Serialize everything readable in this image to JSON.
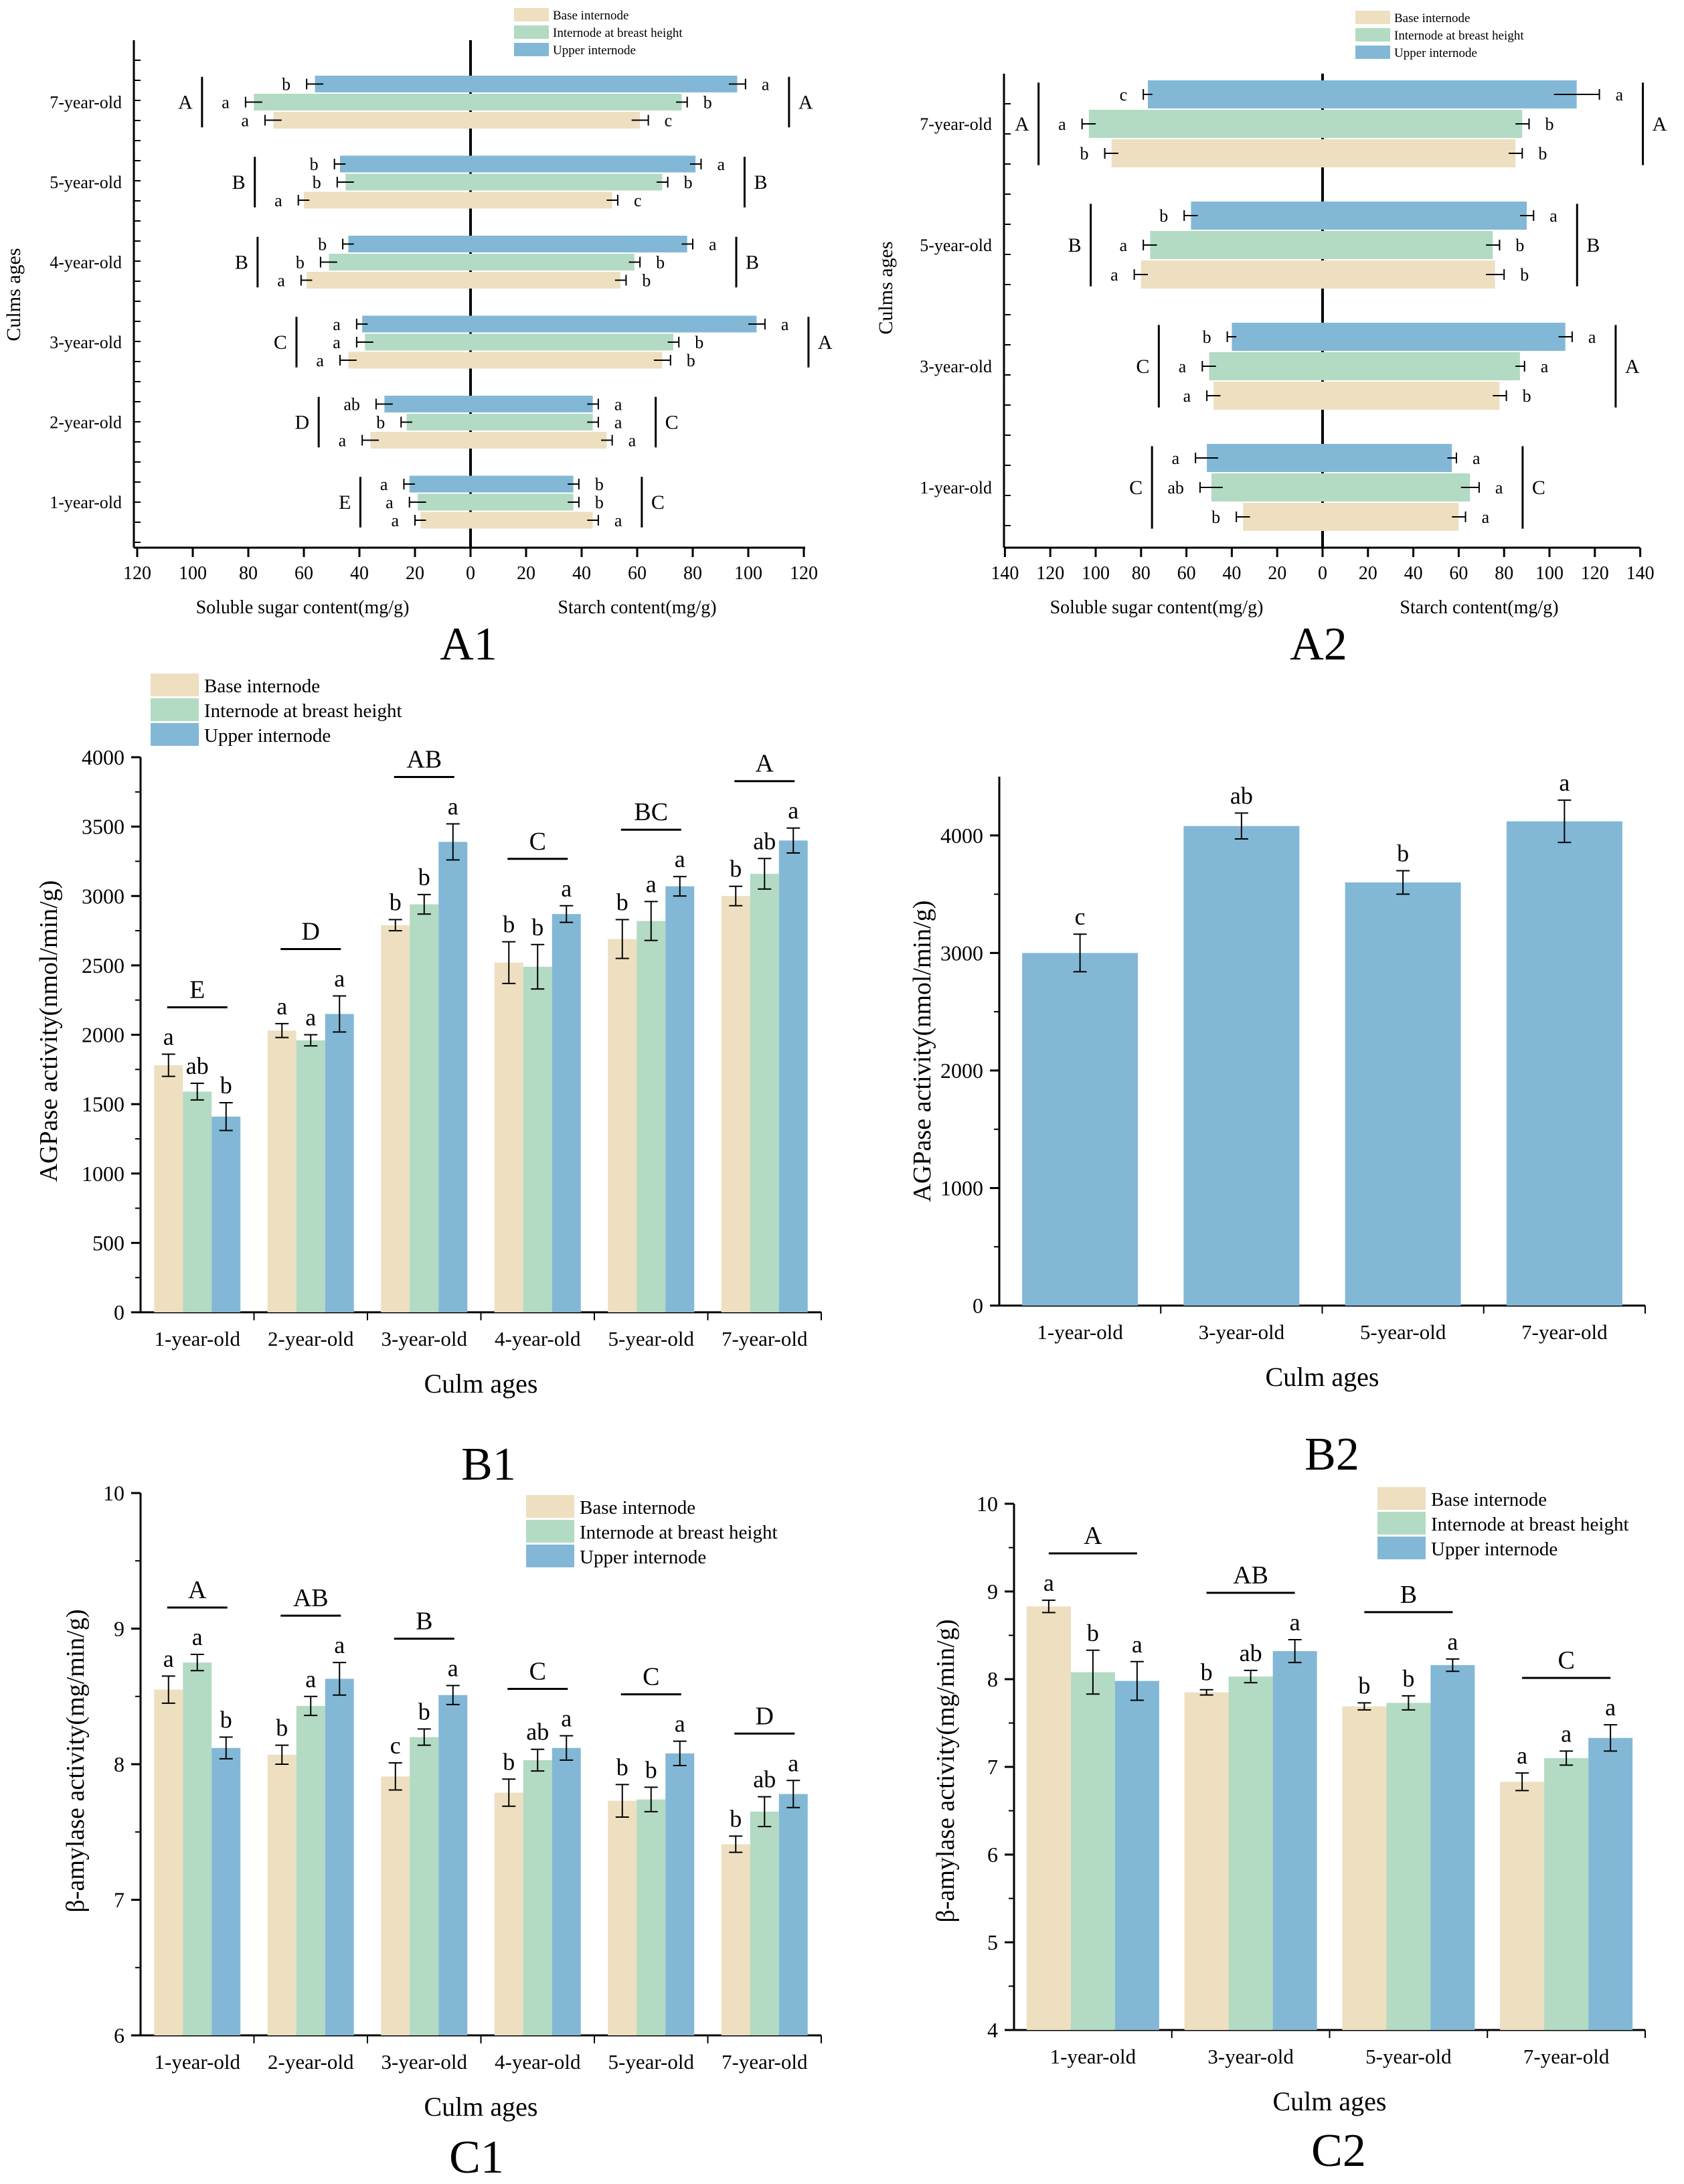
{
  "colors": {
    "base": "#EDDFC0",
    "breast": "#B3DAC2",
    "upper": "#82B8D6"
  },
  "panels": {
    "A1": {
      "label": "A1",
      "legend": [
        "Base internode",
        "Internode at breast height",
        "Upper internode"
      ]
    },
    "A2": {
      "label": "A2",
      "legend": [
        "Base internode",
        "Internode at breast height",
        "Upper internode"
      ]
    },
    "B1": {
      "label": "B1"
    },
    "B2": {
      "label": "B2"
    },
    "C1": {
      "label": "C1"
    },
    "C2": {
      "label": "C2"
    }
  },
  "chart_data": [
    {
      "id": "A1",
      "type": "bar",
      "orientation": "horizontal-butterfly",
      "ylabel": "Culms ages",
      "xlabel_left": "Soluble sugar content(mg/g)",
      "xlabel_right": "Starch content(mg/g)",
      "xlim": [
        0,
        120
      ],
      "xticks": [
        0,
        20,
        40,
        60,
        80,
        100,
        120
      ],
      "categories": [
        "1-year-old",
        "2-year-old",
        "3-year-old",
        "4-year-old",
        "5-year-old",
        "7-year-old"
      ],
      "series": [
        {
          "name": "Base internode",
          "sugar": [
            18,
            36,
            44,
            59,
            60,
            71
          ],
          "sugar_err": [
            2,
            3,
            3,
            2,
            2,
            3
          ],
          "sugar_letters": [
            "a",
            "a",
            "a",
            "a",
            "a",
            "a"
          ],
          "starch": [
            44,
            49,
            69,
            54,
            51,
            61
          ],
          "starch_err": [
            2,
            2,
            3,
            2,
            2,
            3
          ],
          "starch_letters": [
            "a",
            "a",
            "b",
            "b",
            "c",
            "c"
          ]
        },
        {
          "name": "Internode at breast height",
          "sugar": [
            19,
            23,
            38,
            51,
            45,
            78
          ],
          "sugar_err": [
            3,
            2,
            3,
            3,
            3,
            3
          ],
          "sugar_letters": [
            "a",
            "b",
            "a",
            "b",
            "b",
            "a"
          ],
          "starch": [
            37,
            44,
            73,
            59,
            69,
            76
          ],
          "starch_err": [
            2,
            2,
            2,
            2,
            2,
            2
          ],
          "starch_letters": [
            "b",
            "a",
            "b",
            "b",
            "b",
            "b"
          ]
        },
        {
          "name": "Upper internode",
          "sugar": [
            22,
            31,
            39,
            44,
            47,
            56
          ],
          "sugar_err": [
            2,
            3,
            2,
            2,
            2,
            3
          ],
          "sugar_letters": [
            "a",
            "ab",
            "a",
            "b",
            "b",
            "b"
          ],
          "starch": [
            37,
            44,
            103,
            78,
            81,
            96
          ],
          "starch_err": [
            2,
            2,
            3,
            2,
            2,
            3
          ],
          "starch_letters": [
            "b",
            "a",
            "a",
            "a",
            "a",
            "a"
          ]
        }
      ],
      "group_letters_sugar": [
        "E",
        "D",
        "C",
        "B",
        "B",
        "A"
      ],
      "group_letters_starch": [
        "C",
        "C",
        "A",
        "B",
        "B",
        "A"
      ]
    },
    {
      "id": "A2",
      "type": "bar",
      "orientation": "horizontal-butterfly",
      "ylabel": "Culms ages",
      "xlabel_left": "Soluble sugar content(mg/g)",
      "xlabel_right": "Starch content(mg/g)",
      "xlim": [
        0,
        140
      ],
      "xticks": [
        0,
        20,
        40,
        60,
        80,
        100,
        120,
        140
      ],
      "categories": [
        "1-year-old",
        "3-year-old",
        "5-year-old",
        "7-year-old"
      ],
      "series": [
        {
          "name": "Base internode",
          "sugar": [
            35,
            48,
            80,
            93
          ],
          "sugar_err": [
            3,
            3,
            3,
            3
          ],
          "sugar_letters": [
            "b",
            "a",
            "a",
            "b"
          ],
          "starch": [
            60,
            78,
            76,
            85
          ],
          "starch_err": [
            3,
            3,
            4,
            3
          ],
          "starch_letters": [
            "a",
            "b",
            "b",
            "b"
          ]
        },
        {
          "name": "Internode at breast height",
          "sugar": [
            49,
            50,
            76,
            103
          ],
          "sugar_err": [
            5,
            3,
            3,
            3
          ],
          "sugar_letters": [
            "ab",
            "a",
            "a",
            "a"
          ],
          "starch": [
            65,
            87,
            75,
            88
          ],
          "starch_err": [
            4,
            2,
            3,
            3
          ],
          "starch_letters": [
            "a",
            "a",
            "b",
            "b"
          ]
        },
        {
          "name": "Upper internode",
          "sugar": [
            51,
            40,
            58,
            77
          ],
          "sugar_err": [
            5,
            2,
            3,
            2
          ],
          "sugar_letters": [
            "a",
            "b",
            "b",
            "c"
          ],
          "starch": [
            57,
            107,
            90,
            112
          ],
          "starch_err": [
            2,
            3,
            3,
            10
          ],
          "starch_letters": [
            "a",
            "a",
            "a",
            "a"
          ]
        }
      ],
      "group_letters_sugar": [
        "C",
        "C",
        "B",
        "A"
      ],
      "group_letters_starch": [
        "C",
        "A",
        "B",
        "A"
      ]
    },
    {
      "id": "B1",
      "type": "bar",
      "xlabel": "Culm ages",
      "ylabel": "AGPase activity(nmol/min/g)",
      "ylim": [
        0,
        4000
      ],
      "yticks": [
        0,
        500,
        1000,
        1500,
        2000,
        2500,
        3000,
        3500,
        4000
      ],
      "categories": [
        "1-year-old",
        "2-year-old",
        "3-year-old",
        "4-year-old",
        "5-year-old",
        "7-year-old"
      ],
      "series": [
        {
          "name": "Base internode",
          "values": [
            1780,
            2030,
            2790,
            2520,
            2690,
            3000
          ],
          "err": [
            80,
            50,
            40,
            150,
            140,
            70
          ],
          "letters": [
            "a",
            "a",
            "b",
            "b",
            "b",
            "b"
          ]
        },
        {
          "name": "Internode at breast height",
          "values": [
            1590,
            1960,
            2940,
            2490,
            2820,
            3160
          ],
          "err": [
            60,
            40,
            70,
            160,
            140,
            110
          ],
          "letters": [
            "ab",
            "a",
            "b",
            "b",
            "a",
            "ab"
          ]
        },
        {
          "name": "Upper internode",
          "values": [
            1410,
            2150,
            3390,
            2870,
            3070,
            3400
          ],
          "err": [
            100,
            130,
            130,
            60,
            70,
            90
          ],
          "letters": [
            "b",
            "a",
            "a",
            "a",
            "a",
            "a"
          ]
        }
      ],
      "group_letters": [
        "E",
        "D",
        "AB",
        "C",
        "BC",
        "A"
      ]
    },
    {
      "id": "B2",
      "type": "bar",
      "xlabel": "Culm ages",
      "ylabel": "AGPase activity(nmol/min/g)",
      "ylim": [
        0,
        4500
      ],
      "yticks": [
        0,
        1000,
        2000,
        3000,
        4000
      ],
      "categories": [
        "1-year-old",
        "3-year-old",
        "5-year-old",
        "7-year-old"
      ],
      "series": [
        {
          "name": "Upper internode",
          "values": [
            3000,
            4080,
            3600,
            4120
          ],
          "err": [
            160,
            110,
            100,
            180
          ],
          "letters": [
            "c",
            "ab",
            "b",
            "a"
          ]
        }
      ]
    },
    {
      "id": "C1",
      "type": "bar",
      "xlabel": "Culm ages",
      "ylabel": "β-amylase activity(mg/min/g)",
      "ylim": [
        6,
        10
      ],
      "yticks": [
        6,
        7,
        8,
        9,
        10
      ],
      "categories": [
        "1-year-old",
        "2-year-old",
        "3-year-old",
        "4-year-old",
        "5-year-old",
        "7-year-old"
      ],
      "series": [
        {
          "name": "Base internode",
          "values": [
            8.55,
            8.07,
            7.91,
            7.79,
            7.73,
            7.41
          ],
          "err": [
            0.1,
            0.07,
            0.1,
            0.1,
            0.12,
            0.06
          ],
          "letters": [
            "a",
            "b",
            "c",
            "b",
            "b",
            "b"
          ]
        },
        {
          "name": "Internode at breast height",
          "values": [
            8.75,
            8.43,
            8.2,
            8.03,
            7.74,
            7.65
          ],
          "err": [
            0.06,
            0.07,
            0.06,
            0.08,
            0.09,
            0.11
          ],
          "letters": [
            "a",
            "a",
            "b",
            "ab",
            "b",
            "ab"
          ]
        },
        {
          "name": "Upper internode",
          "values": [
            8.12,
            8.63,
            8.51,
            8.12,
            8.08,
            7.78
          ],
          "err": [
            0.08,
            0.12,
            0.07,
            0.09,
            0.09,
            0.1
          ],
          "letters": [
            "b",
            "a",
            "a",
            "a",
            "a",
            "a"
          ]
        }
      ],
      "group_letters": [
        "A",
        "AB",
        "B",
        "C",
        "C",
        "D"
      ],
      "legend": [
        "Base internode",
        "Internode at breast height",
        "Upper internode"
      ]
    },
    {
      "id": "C2",
      "type": "bar",
      "xlabel": "Culm ages",
      "ylabel": "β-amylase activity(mg/min/g)",
      "ylim": [
        4,
        10
      ],
      "yticks": [
        4,
        5,
        6,
        7,
        8,
        9,
        10
      ],
      "categories": [
        "1-year-old",
        "3-year-old",
        "5-year-old",
        "7-year-old"
      ],
      "series": [
        {
          "name": "Base internode",
          "values": [
            8.83,
            7.85,
            7.69,
            6.83
          ],
          "err": [
            0.07,
            0.03,
            0.04,
            0.1
          ],
          "letters": [
            "a",
            "b",
            "b",
            "a"
          ]
        },
        {
          "name": "Internode at breast height",
          "values": [
            8.08,
            8.03,
            7.73,
            7.1
          ],
          "err": [
            0.25,
            0.07,
            0.08,
            0.08
          ],
          "letters": [
            "b",
            "ab",
            "b",
            "a"
          ]
        },
        {
          "name": "Upper internode",
          "values": [
            7.98,
            8.32,
            8.16,
            7.33
          ],
          "err": [
            0.22,
            0.13,
            0.07,
            0.15
          ],
          "letters": [
            "a",
            "a",
            "a",
            "a"
          ]
        }
      ],
      "group_letters": [
        "A",
        "AB",
        "B",
        "C"
      ],
      "legend": [
        "Base internode",
        "Internode at breast height",
        "Upper internode"
      ]
    }
  ]
}
